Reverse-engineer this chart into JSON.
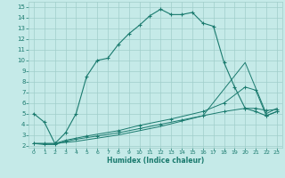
{
  "title": "",
  "xlabel": "Humidex (Indice chaleur)",
  "bg_color": "#c5eae8",
  "grid_color": "#a0ceca",
  "line_color": "#1a7a6e",
  "xlim": [
    -0.5,
    23.5
  ],
  "ylim": [
    1.8,
    15.5
  ],
  "xticks": [
    0,
    1,
    2,
    3,
    4,
    5,
    6,
    7,
    8,
    9,
    10,
    11,
    12,
    13,
    14,
    15,
    16,
    17,
    18,
    19,
    20,
    21,
    22,
    23
  ],
  "yticks": [
    2,
    3,
    4,
    5,
    6,
    7,
    8,
    9,
    10,
    11,
    12,
    13,
    14,
    15
  ],
  "curve1_x": [
    0,
    1,
    2,
    3,
    4,
    5,
    6,
    7,
    8,
    9,
    10,
    11,
    12,
    13,
    14,
    15,
    16,
    17,
    18,
    19,
    20,
    21,
    22,
    23
  ],
  "curve1_y": [
    5.0,
    4.2,
    2.2,
    3.2,
    5.0,
    8.5,
    10.0,
    10.2,
    11.5,
    12.5,
    13.3,
    14.2,
    14.8,
    14.3,
    14.3,
    14.5,
    13.5,
    13.2,
    9.8,
    7.5,
    5.5,
    5.2,
    4.8,
    5.2
  ],
  "curve2_x": [
    0,
    1,
    2,
    3,
    4,
    6,
    8,
    10,
    12,
    14,
    16,
    18,
    20,
    21,
    22,
    23
  ],
  "curve2_y": [
    2.2,
    2.1,
    2.1,
    2.4,
    2.6,
    2.9,
    3.2,
    3.6,
    4.0,
    4.4,
    4.8,
    5.2,
    5.5,
    5.5,
    5.3,
    5.4
  ],
  "curve3_x": [
    0,
    1,
    2,
    3,
    5,
    8,
    10,
    13,
    16,
    18,
    20,
    21,
    22,
    23
  ],
  "curve3_y": [
    2.2,
    2.2,
    2.2,
    2.5,
    2.9,
    3.4,
    3.9,
    4.5,
    5.2,
    6.0,
    7.5,
    7.2,
    4.8,
    5.2
  ],
  "curve4_x": [
    0,
    2,
    4,
    8,
    12,
    16,
    20,
    22,
    23
  ],
  "curve4_y": [
    2.2,
    2.2,
    2.4,
    3.0,
    3.8,
    4.8,
    9.8,
    5.0,
    5.5
  ]
}
